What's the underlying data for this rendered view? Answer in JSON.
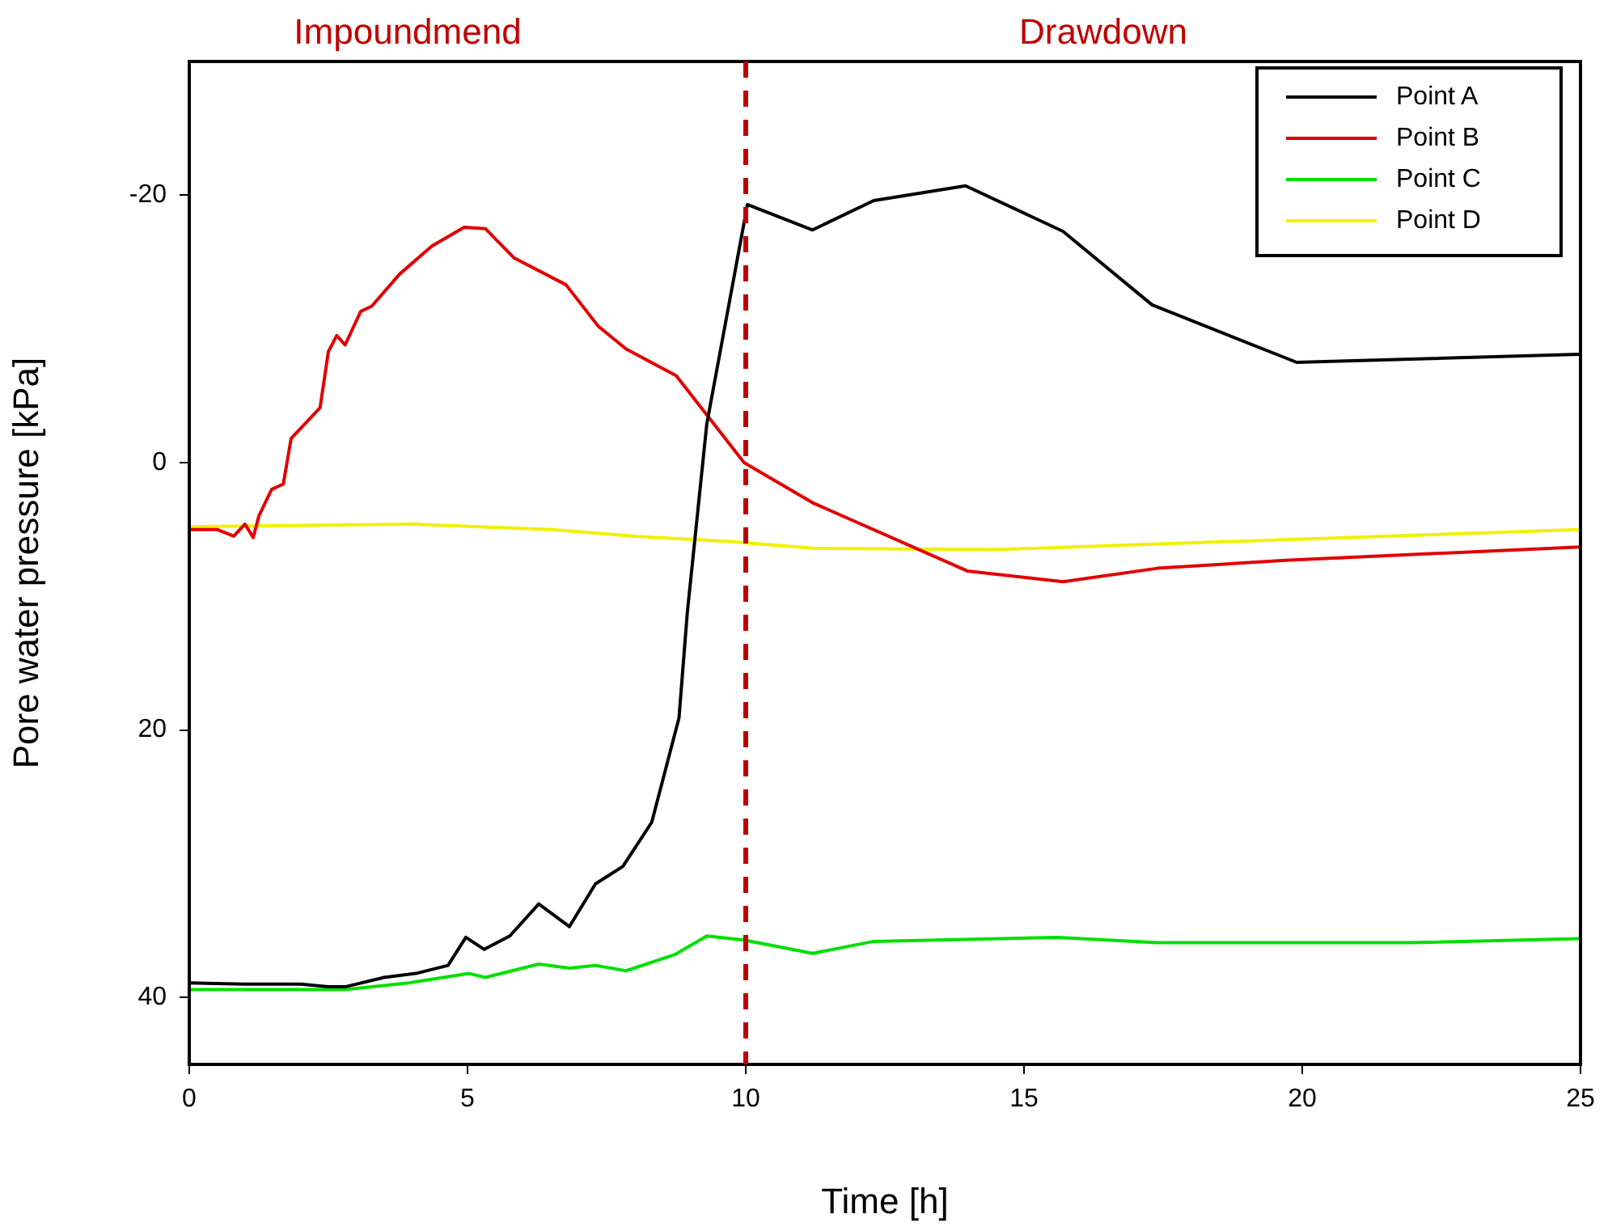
{
  "chart_data": {
    "type": "line",
    "xlabel": "Time [h]",
    "ylabel": "Pore water pressure [kPa]",
    "xlim": [
      0,
      25
    ],
    "xticks": [
      0,
      5,
      10,
      15,
      20,
      25
    ],
    "ylim": [
      45,
      -30
    ],
    "yticks": [
      -20,
      0,
      20,
      40
    ],
    "grid": false,
    "legend": "top right",
    "marker": "none",
    "line_style": "solid",
    "series": [
      {
        "name": "Point A",
        "color": "#000000",
        "x": [
          0,
          1,
          2,
          2.5,
          2.8,
          3.5,
          4.07,
          4.65,
          4.97,
          5.3,
          5.76,
          6.28,
          6.83,
          7.3,
          7.79,
          8.31,
          8.8,
          8.95,
          9.3,
          10.03,
          11.2,
          12.3,
          13.95,
          15.7,
          17.3,
          19.9,
          25
        ],
        "values": [
          38.9,
          39,
          39,
          39.2,
          39.2,
          38.5,
          38.2,
          37.6,
          35.5,
          36.4,
          35.4,
          33,
          34.7,
          31.5,
          30.2,
          26.9,
          19.1,
          11.2,
          -2.9,
          -19.3,
          -17.4,
          -19.6,
          -20.7,
          -17.3,
          -11.8,
          -7.5,
          -8.1
        ]
      },
      {
        "name": "Point B",
        "color": "#e00000",
        "x": [
          0,
          0.5,
          0.8,
          1,
          1.15,
          1.25,
          1.48,
          1.69,
          1.83,
          2.35,
          2.5,
          2.65,
          2.8,
          3.08,
          3.28,
          3.78,
          4.36,
          4.94,
          5.32,
          5.84,
          6.77,
          7.35,
          7.85,
          8.75,
          9.97,
          11.2,
          13.98,
          15.7,
          17.4,
          19.7,
          25
        ],
        "values": [
          5,
          5,
          5.5,
          4.6,
          5.6,
          4,
          2,
          1.6,
          -1.8,
          -4.1,
          -8.3,
          -9.5,
          -8.8,
          -11.3,
          -11.7,
          -14.1,
          -16.2,
          -17.6,
          -17.5,
          -15.3,
          -13.3,
          -10.2,
          -8.5,
          -6.5,
          0,
          3,
          8.1,
          8.9,
          7.9,
          7.3,
          6.3
        ]
      },
      {
        "name": "Point C",
        "color": "#00e000",
        "x": [
          0,
          2,
          2.8,
          3.95,
          5.03,
          5.32,
          6.28,
          6.83,
          7.3,
          7.85,
          8.72,
          9.3,
          9.97,
          11.2,
          12.3,
          15.6,
          17.4,
          21.9,
          25
        ],
        "values": [
          39.4,
          39.4,
          39.4,
          38.9,
          38.2,
          38.5,
          37.5,
          37.8,
          37.6,
          38,
          36.8,
          35.4,
          35.7,
          36.7,
          35.8,
          35.5,
          35.9,
          35.9,
          35.6
        ]
      },
      {
        "name": "Point D",
        "color": "#f0f000",
        "x": [
          0,
          4,
          6.5,
          8,
          9.7,
          11.2,
          14.5,
          25
        ],
        "values": [
          4.8,
          4.6,
          5,
          5.5,
          5.9,
          6.4,
          6.5,
          5.0
        ]
      }
    ],
    "ref_lines": [
      {
        "axis": "x",
        "value": 10,
        "label": null,
        "color": "#c00000",
        "line_style": "dashed"
      }
    ],
    "annotations": [
      "Impoundmend",
      "Drawdown"
    ]
  }
}
